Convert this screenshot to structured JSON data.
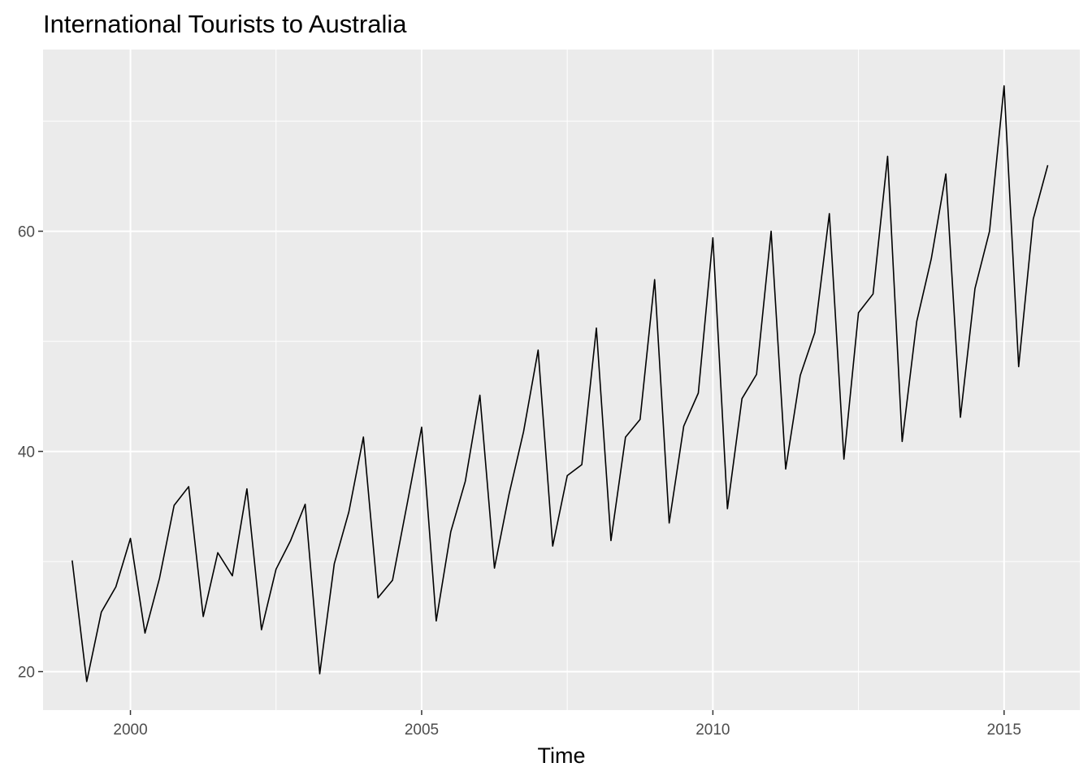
{
  "chart_data": {
    "type": "line",
    "title": "International Tourists to Australia",
    "xlabel": "Time",
    "ylabel": "",
    "xlim": [
      1998.5,
      2016.3
    ],
    "ylim": [
      16.5,
      76.5
    ],
    "x_ticks": [
      2000,
      2005,
      2010,
      2015
    ],
    "y_ticks": [
      20,
      40,
      60
    ],
    "grid": true,
    "series": [
      {
        "x": [
          1999.0,
          1999.25,
          1999.5,
          1999.75,
          2000.0,
          2000.25,
          2000.5,
          2000.75,
          2001.0,
          2001.25,
          2001.5,
          2001.75,
          2002.0,
          2002.25,
          2002.5,
          2002.75,
          2003.0,
          2003.25,
          2003.5,
          2003.75,
          2004.0,
          2004.25,
          2004.5,
          2004.75,
          2005.0,
          2005.25,
          2005.5,
          2005.75,
          2006.0,
          2006.25,
          2006.5,
          2006.75,
          2007.0,
          2007.25,
          2007.5,
          2007.75,
          2008.0,
          2008.25,
          2008.5,
          2008.75,
          2009.0,
          2009.25,
          2009.5,
          2009.75,
          2010.0,
          2010.25,
          2010.5,
          2010.75,
          2011.0,
          2011.25,
          2011.5,
          2011.75,
          2012.0,
          2012.25,
          2012.5,
          2012.75,
          2013.0,
          2013.25,
          2013.5,
          2013.75,
          2014.0,
          2014.25,
          2014.5,
          2014.75,
          2015.0,
          2015.25,
          2015.5,
          2015.75
        ],
        "values": [
          30.1,
          19.1,
          25.4,
          27.7,
          32.1,
          23.5,
          28.5,
          35.1,
          36.8,
          25.0,
          30.8,
          28.7,
          36.6,
          23.8,
          29.3,
          31.9,
          35.2,
          19.8,
          29.8,
          34.5,
          41.3,
          26.7,
          28.3,
          35.2,
          42.2,
          24.6,
          32.7,
          37.3,
          45.1,
          29.4,
          36.1,
          41.8,
          49.2,
          31.4,
          37.8,
          38.8,
          51.2,
          31.9,
          41.3,
          42.9,
          55.6,
          33.5,
          42.3,
          45.3,
          59.4,
          34.8,
          44.8,
          47.0,
          60.0,
          38.4,
          46.9,
          50.8,
          61.6,
          39.3,
          52.6,
          54.3,
          66.8,
          40.9,
          51.8,
          57.5,
          65.2,
          43.1,
          54.8,
          60.0,
          73.2,
          47.7,
          61.1,
          66.0
        ]
      }
    ]
  }
}
